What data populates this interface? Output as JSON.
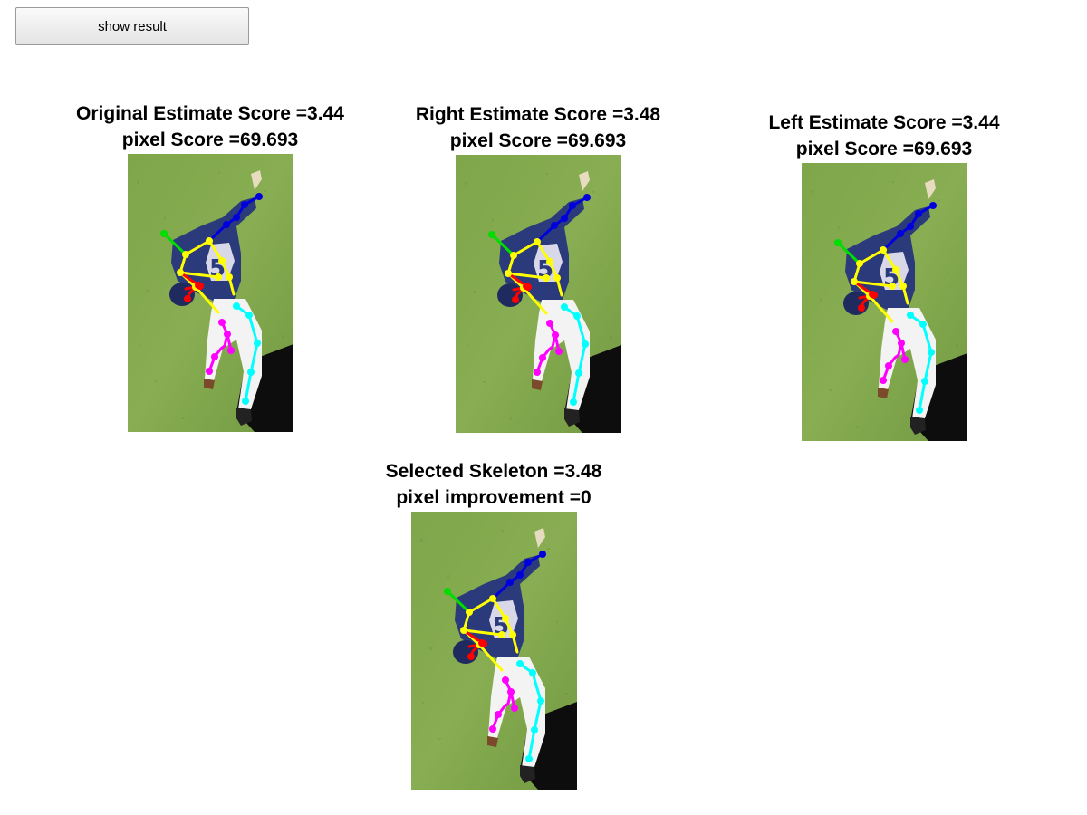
{
  "toolbar": {
    "show_result_label": "show result"
  },
  "panels": [
    {
      "id": "original",
      "line1": "Original Estimate Score =3.44",
      "line2": "pixel Score =69.693"
    },
    {
      "id": "right",
      "line1": "Right Estimate Score =3.48",
      "line2": "pixel Score =69.693"
    },
    {
      "id": "left",
      "line1": "Left Estimate Score =3.44",
      "line2": "pixel Score =69.693"
    },
    {
      "id": "selected",
      "line1": "Selected Skeleton =3.48",
      "line2": "pixel improvement =0"
    }
  ],
  "skeleton_colors": {
    "head": "#00dd00",
    "torso": "#ffff00",
    "right_arm": "#0000dd",
    "left_arm": "#ff0000",
    "right_leg": "#00ffff",
    "left_leg": "#ff00ff"
  }
}
